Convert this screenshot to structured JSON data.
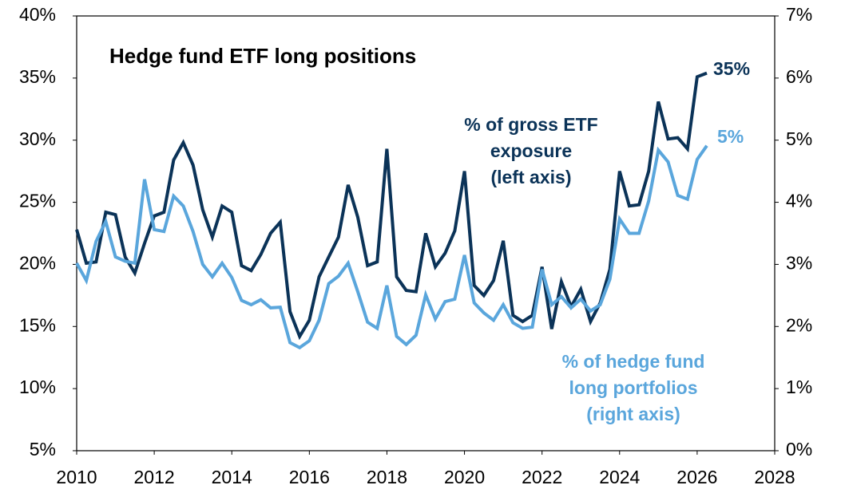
{
  "chart_data": {
    "type": "line",
    "title": "Hedge fund ETF long positions",
    "x": [
      2010,
      2010.25,
      2010.5,
      2010.75,
      2011,
      2011.25,
      2011.5,
      2011.75,
      2012,
      2012.25,
      2012.5,
      2012.75,
      2013,
      2013.25,
      2013.5,
      2013.75,
      2014,
      2014.25,
      2014.5,
      2014.75,
      2015,
      2015.25,
      2015.5,
      2015.75,
      2016,
      2016.25,
      2016.5,
      2016.75,
      2017,
      2017.25,
      2017.5,
      2017.75,
      2018,
      2018.25,
      2018.5,
      2018.75,
      2019,
      2019.25,
      2019.5,
      2019.75,
      2020,
      2020.25,
      2020.5,
      2020.75,
      2021,
      2021.25,
      2021.5,
      2021.75,
      2022,
      2022.25,
      2022.5,
      2022.75,
      2023,
      2023.25,
      2023.5,
      2023.75,
      2024,
      2024.25,
      2024.5,
      2024.75,
      2025,
      2025.25,
      2025.5,
      2025.75,
      2026,
      2026.25
    ],
    "series": [
      {
        "name": [
          "% of gross ETF",
          "exposure",
          "(left axis)"
        ],
        "color": "#0b3358",
        "axis": "y",
        "end_label": "35%",
        "values": [
          22.8,
          20.1,
          20.2,
          24.2,
          24.0,
          20.6,
          19.3,
          21.7,
          23.9,
          24.2,
          28.4,
          29.8,
          28.0,
          24.4,
          22.2,
          24.7,
          24.2,
          19.9,
          19.5,
          20.8,
          22.5,
          23.4,
          16.2,
          14.2,
          15.5,
          19.0,
          20.6,
          22.2,
          26.4,
          23.8,
          19.9,
          20.2,
          29.3,
          19.0,
          17.9,
          17.8,
          22.5,
          19.8,
          20.9,
          22.7,
          27.5,
          18.3,
          17.5,
          18.7,
          21.9,
          15.9,
          15.4,
          15.9,
          19.8,
          14.8,
          18.6,
          16.6,
          18.0,
          15.4,
          16.9,
          19.6,
          27.5,
          24.7,
          24.8,
          27.5,
          33.1,
          30.1,
          30.2,
          29.3,
          35.1,
          35.4
        ]
      },
      {
        "name": [
          "% of hedge fund",
          "long portfolios",
          "(right axis)"
        ],
        "color": "#5aa6dc",
        "axis": "y2",
        "end_label": "5%",
        "values": [
          3.02,
          2.74,
          3.37,
          3.69,
          3.12,
          3.05,
          3.02,
          4.37,
          3.56,
          3.53,
          4.1,
          3.94,
          3.53,
          3.0,
          2.8,
          3.02,
          2.79,
          2.42,
          2.35,
          2.43,
          2.3,
          2.31,
          1.74,
          1.66,
          1.77,
          2.1,
          2.69,
          2.81,
          3.02,
          2.56,
          2.07,
          1.97,
          2.66,
          1.84,
          1.71,
          1.86,
          2.51,
          2.12,
          2.4,
          2.44,
          3.15,
          2.38,
          2.22,
          2.1,
          2.35,
          2.06,
          1.97,
          1.99,
          2.92,
          2.35,
          2.48,
          2.3,
          2.44,
          2.25,
          2.35,
          2.76,
          3.73,
          3.5,
          3.5,
          4.02,
          4.84,
          4.65,
          4.11,
          4.05,
          4.69,
          4.91
        ]
      }
    ],
    "xlim": [
      2010,
      2028
    ],
    "xticks": [
      2010,
      2012,
      2014,
      2016,
      2018,
      2020,
      2022,
      2024,
      2026,
      2028
    ],
    "ylim": [
      5,
      40
    ],
    "yticks": [
      {
        "value": 5,
        "label": "5%"
      },
      {
        "value": 10,
        "label": "10%"
      },
      {
        "value": 15,
        "label": "15%"
      },
      {
        "value": 20,
        "label": "20%"
      },
      {
        "value": 25,
        "label": "25%"
      },
      {
        "value": 30,
        "label": "30%"
      },
      {
        "value": 35,
        "label": "35%"
      },
      {
        "value": 40,
        "label": "40%"
      }
    ],
    "y2lim": [
      0,
      7
    ],
    "y2ticks": [
      {
        "value": 0,
        "label": "0%"
      },
      {
        "value": 1,
        "label": "1%"
      },
      {
        "value": 2,
        "label": "2%"
      },
      {
        "value": 3,
        "label": "3%"
      },
      {
        "value": 4,
        "label": "4%"
      },
      {
        "value": 5,
        "label": "5%"
      },
      {
        "value": 6,
        "label": "6%"
      },
      {
        "value": 7,
        "label": "7%"
      }
    ],
    "grid": false
  }
}
